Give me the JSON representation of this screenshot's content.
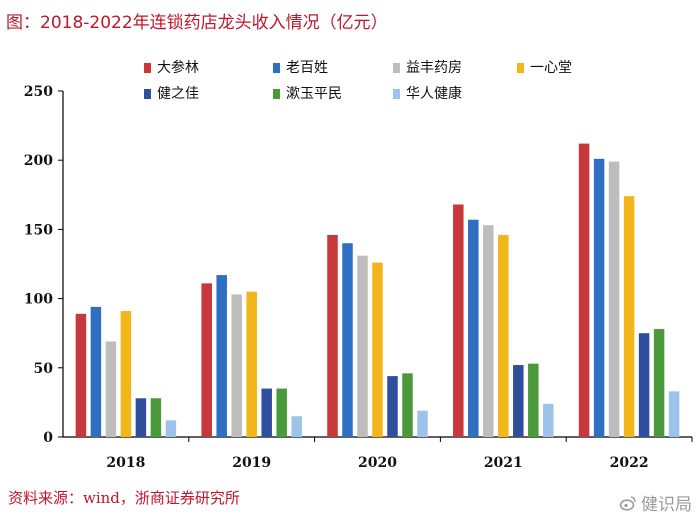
{
  "title": "图：2018-2022年连锁药店龙头收入情况（亿元）",
  "source": "资料来源：wind，浙商证券研究所",
  "watermark": "健识局",
  "colors": {
    "title_text": "#c0152a",
    "series": [
      "#c8373a",
      "#2e6fc4",
      "#bdbdbd",
      "#f2b51a",
      "#2f4f9e",
      "#4a9a3c",
      "#9ec3ea"
    ]
  },
  "chart_data": {
    "type": "bar",
    "categories": [
      "2018",
      "2019",
      "2020",
      "2021",
      "2022"
    ],
    "series": [
      {
        "name": "大参林",
        "values": [
          89,
          111,
          146,
          168,
          212
        ]
      },
      {
        "name": "老百姓",
        "values": [
          94,
          117,
          140,
          157,
          201
        ]
      },
      {
        "name": "益丰药房",
        "values": [
          69,
          103,
          131,
          153,
          199
        ]
      },
      {
        "name": "一心堂",
        "values": [
          91,
          105,
          126,
          146,
          174
        ]
      },
      {
        "name": "健之佳",
        "values": [
          28,
          35,
          44,
          52,
          75
        ]
      },
      {
        "name": "漱玉平民",
        "values": [
          28,
          35,
          46,
          53,
          78
        ]
      },
      {
        "name": "华人健康",
        "values": [
          12,
          15,
          19,
          24,
          33
        ]
      }
    ],
    "ylim": [
      0,
      250
    ],
    "yticks": [
      0,
      50,
      100,
      150,
      200,
      250
    ],
    "legend_position": "top",
    "grid": false
  }
}
